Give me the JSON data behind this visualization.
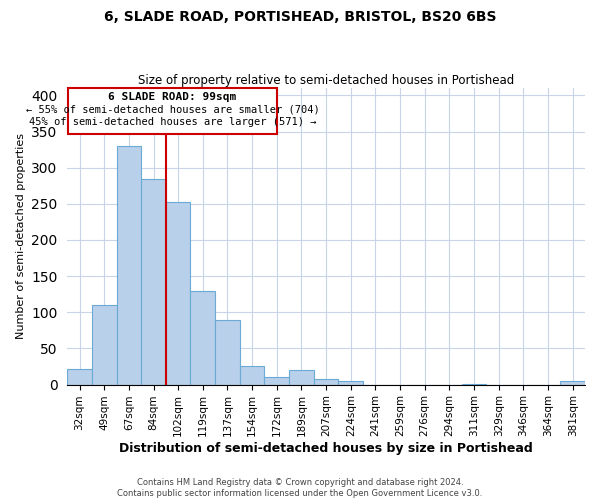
{
  "title1": "6, SLADE ROAD, PORTISHEAD, BRISTOL, BS20 6BS",
  "title2": "Size of property relative to semi-detached houses in Portishead",
  "xlabel": "Distribution of semi-detached houses by size in Portishead",
  "ylabel": "Number of semi-detached properties",
  "bar_labels": [
    "32sqm",
    "49sqm",
    "67sqm",
    "84sqm",
    "102sqm",
    "119sqm",
    "137sqm",
    "154sqm",
    "172sqm",
    "189sqm",
    "207sqm",
    "224sqm",
    "241sqm",
    "259sqm",
    "276sqm",
    "294sqm",
    "311sqm",
    "329sqm",
    "346sqm",
    "364sqm",
    "381sqm"
  ],
  "bar_values": [
    22,
    110,
    330,
    285,
    252,
    130,
    90,
    26,
    10,
    20,
    8,
    5,
    0,
    0,
    0,
    0,
    1,
    0,
    0,
    0,
    5
  ],
  "bar_color": "#b8d0ea",
  "bar_edge_color": "#6aaad4",
  "vline_color": "#cc0000",
  "annotation_title": "6 SLADE ROAD: 99sqm",
  "annotation_line1": "← 55% of semi-detached houses are smaller (704)",
  "annotation_line2": "45% of semi-detached houses are larger (571) →",
  "annotation_box_color": "#cc0000",
  "ylim": [
    0,
    410
  ],
  "yticks": [
    0,
    50,
    100,
    150,
    200,
    250,
    300,
    350,
    400
  ],
  "footer1": "Contains HM Land Registry data © Crown copyright and database right 2024.",
  "footer2": "Contains public sector information licensed under the Open Government Licence v3.0.",
  "background_color": "#ffffff",
  "grid_color": "#c8d4e8"
}
